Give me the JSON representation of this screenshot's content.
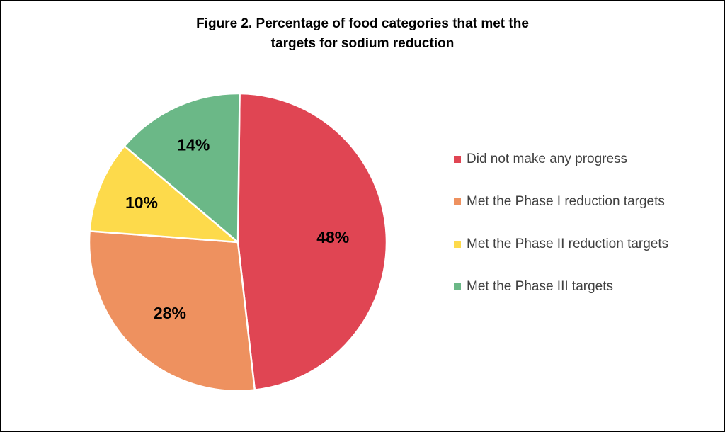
{
  "chart_data": {
    "type": "pie",
    "title": "Figure 2. Percentage of food categories that met the targets for sodium reduction",
    "title_lines": [
      "Figure 2. Percentage of food categories that met the",
      "targets for sodium reduction"
    ],
    "legend_position": "right",
    "slices": [
      {
        "name": "Did not make any progress",
        "value": 48,
        "label": "48%",
        "color": "#E04553"
      },
      {
        "name": "Met the Phase I reduction targets",
        "value": 28,
        "label": "28%",
        "color": "#EE915F"
      },
      {
        "name": "Met the Phase II reduction targets",
        "value": 10,
        "label": "10%",
        "color": "#FDDA4B"
      },
      {
        "name": "Met the Phase III targets",
        "value": 14,
        "label": "14%",
        "color": "#6BB887"
      }
    ]
  }
}
